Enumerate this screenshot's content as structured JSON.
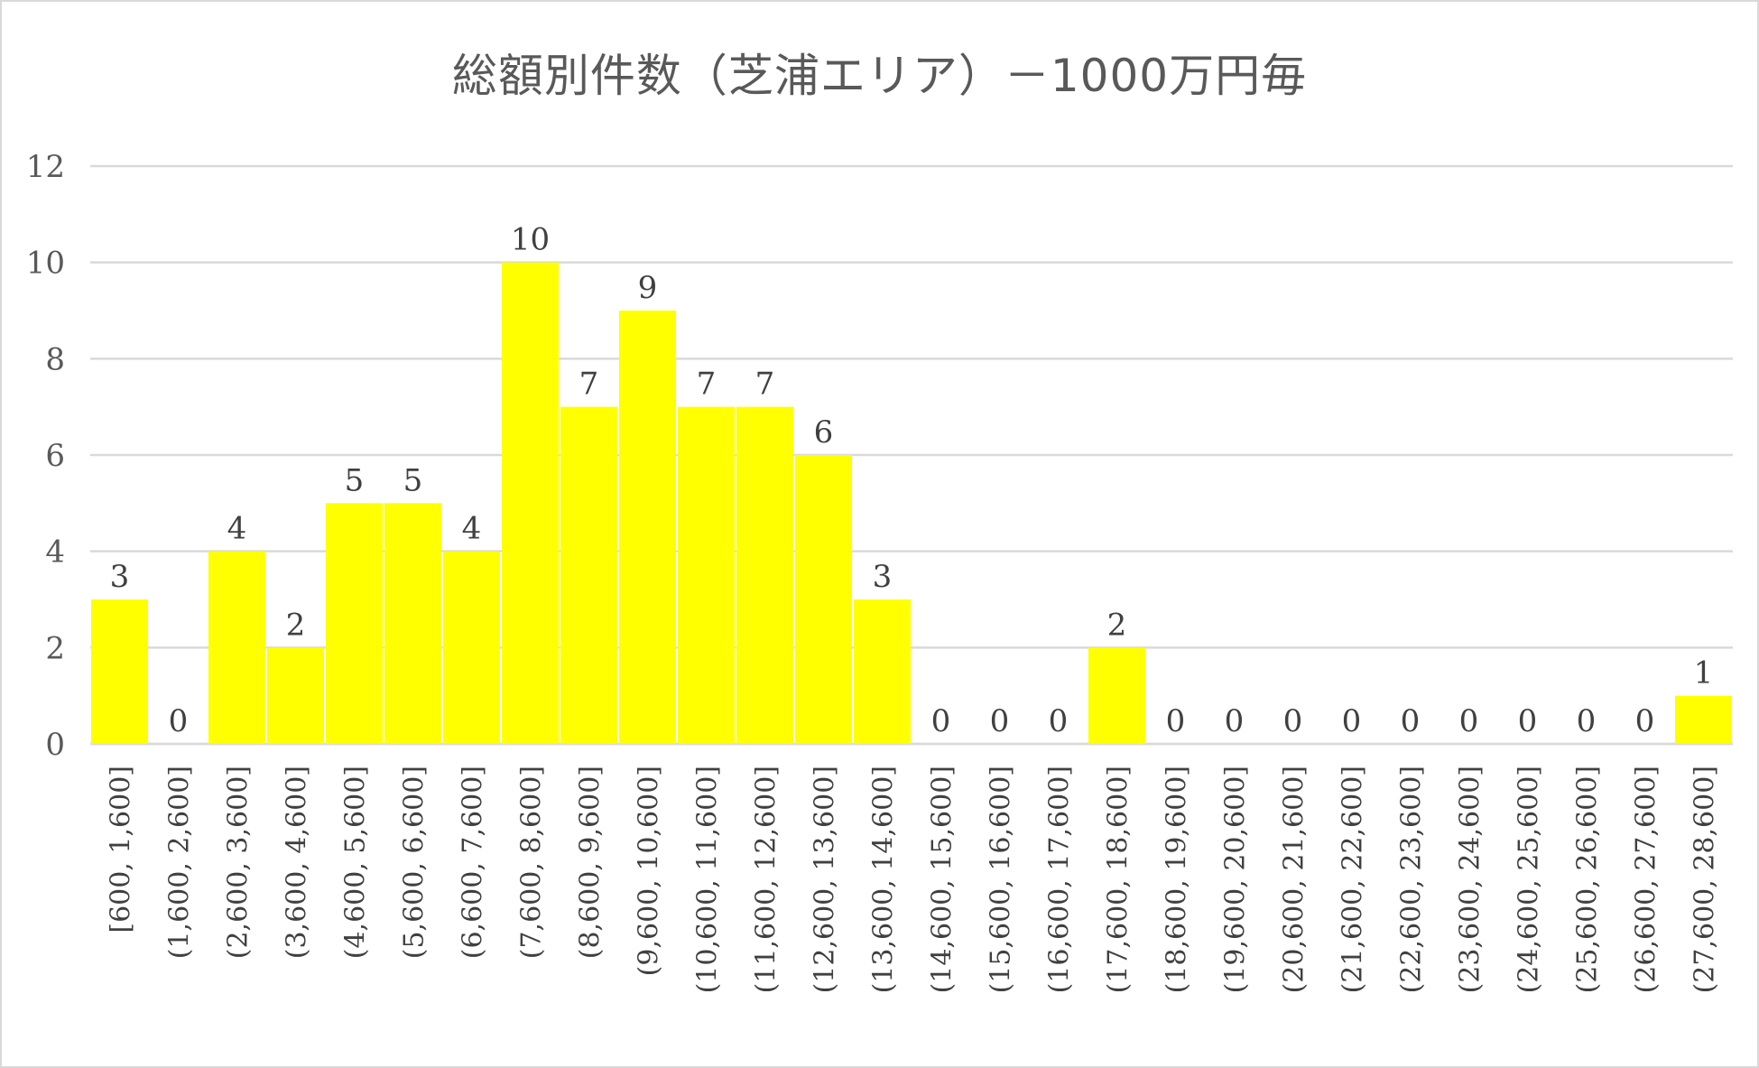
{
  "chart_data": {
    "type": "bar",
    "title": "総額別件数（芝浦エリア）－1000万円毎",
    "xlabel": "",
    "ylabel": "",
    "ylim": [
      0,
      12
    ],
    "yticks": [
      0,
      2,
      4,
      6,
      8,
      10,
      12
    ],
    "grid": true,
    "legend": "none",
    "bar_color": "#ffff00",
    "grid_color": "#d9d9d9",
    "categories": [
      "[600, 1,600]",
      "(1,600, 2,600]",
      "(2,600, 3,600]",
      "(3,600, 4,600]",
      "(4,600, 5,600]",
      "(5,600, 6,600]",
      "(6,600, 7,600]",
      "(7,600, 8,600]",
      "(8,600, 9,600]",
      "(9,600, 10,600]",
      "(10,600, 11,600]",
      "(11,600, 12,600]",
      "(12,600, 13,600]",
      "(13,600, 14,600]",
      "(14,600, 15,600]",
      "(15,600, 16,600]",
      "(16,600, 17,600]",
      "(17,600, 18,600]",
      "(18,600, 19,600]",
      "(19,600, 20,600]",
      "(20,600, 21,600]",
      "(21,600, 22,600]",
      "(22,600, 23,600]",
      "(23,600, 24,600]",
      "(24,600, 25,600]",
      "(25,600, 26,600]",
      "(26,600, 27,600]",
      "(27,600, 28,600]"
    ],
    "values": [
      3,
      0,
      4,
      2,
      5,
      5,
      4,
      10,
      7,
      9,
      7,
      7,
      6,
      3,
      0,
      0,
      0,
      2,
      0,
      0,
      0,
      0,
      0,
      0,
      0,
      0,
      0,
      1
    ]
  }
}
